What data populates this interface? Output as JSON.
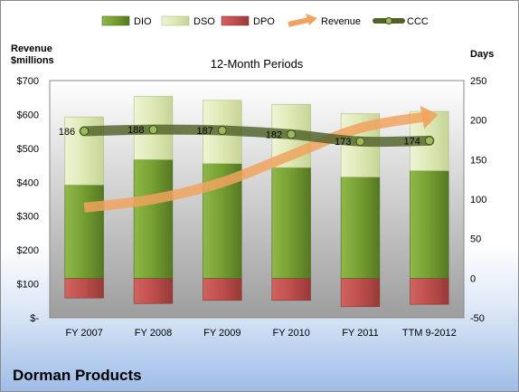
{
  "chart_data": {
    "type": "bar",
    "title": "12-Month Periods",
    "company": "Dorman Products",
    "left_axis_title": [
      "Revenue",
      "$millions"
    ],
    "right_axis_title": "Days",
    "categories": [
      "FY 2007",
      "FY 2008",
      "FY 2009",
      "FY 2010",
      "FY 2011",
      "TTM 9-2012"
    ],
    "left_axis": {
      "ylim": [
        0,
        700
      ],
      "ticks": [
        0,
        100,
        200,
        300,
        400,
        500,
        600,
        700
      ],
      "tick_labels": [
        "$-",
        "$100",
        "$200",
        "$300",
        "$400",
        "$500",
        "$600",
        "$700"
      ]
    },
    "right_axis": {
      "ylim": [
        -50,
        250
      ],
      "ticks": [
        -50,
        0,
        50,
        100,
        150,
        200,
        250
      ],
      "tick_labels": [
        "-50",
        "0",
        "50",
        "100",
        "150",
        "200",
        "250"
      ]
    },
    "series": [
      {
        "name": "DIO",
        "kind": "stacked-bar",
        "color": "#77a133",
        "values": [
          118,
          150,
          145,
          140,
          128,
          136
        ]
      },
      {
        "name": "DSO",
        "kind": "stacked-bar",
        "color": "#dfeab7",
        "values": [
          86,
          80,
          80,
          80,
          80,
          75
        ]
      },
      {
        "name": "DPO",
        "kind": "stacked-bar",
        "color": "#c0504d",
        "values": [
          -25,
          -32,
          -28,
          -28,
          -36,
          -33
        ]
      },
      {
        "name": "Revenue",
        "kind": "line",
        "axis": "left",
        "color": "#f0a35e",
        "values": [
          325,
          350,
          400,
          480,
          560,
          595
        ]
      },
      {
        "name": "CCC",
        "kind": "line",
        "axis": "right",
        "color": "#4f6228",
        "values": [
          186,
          188,
          187,
          182,
          173,
          174
        ],
        "data_labels": [
          "186",
          "188",
          "187",
          "182",
          "173",
          "174"
        ]
      }
    ],
    "legend_position": "top",
    "grid": false
  },
  "colors": {
    "plot_top": "#ffffff",
    "plot_bottom": "#9d9d9d",
    "dio": "#77a133",
    "dso": "#dfeab7",
    "dpo": "#c0504d",
    "revenue": "#f0a35e",
    "ccc": "#4f6228"
  }
}
